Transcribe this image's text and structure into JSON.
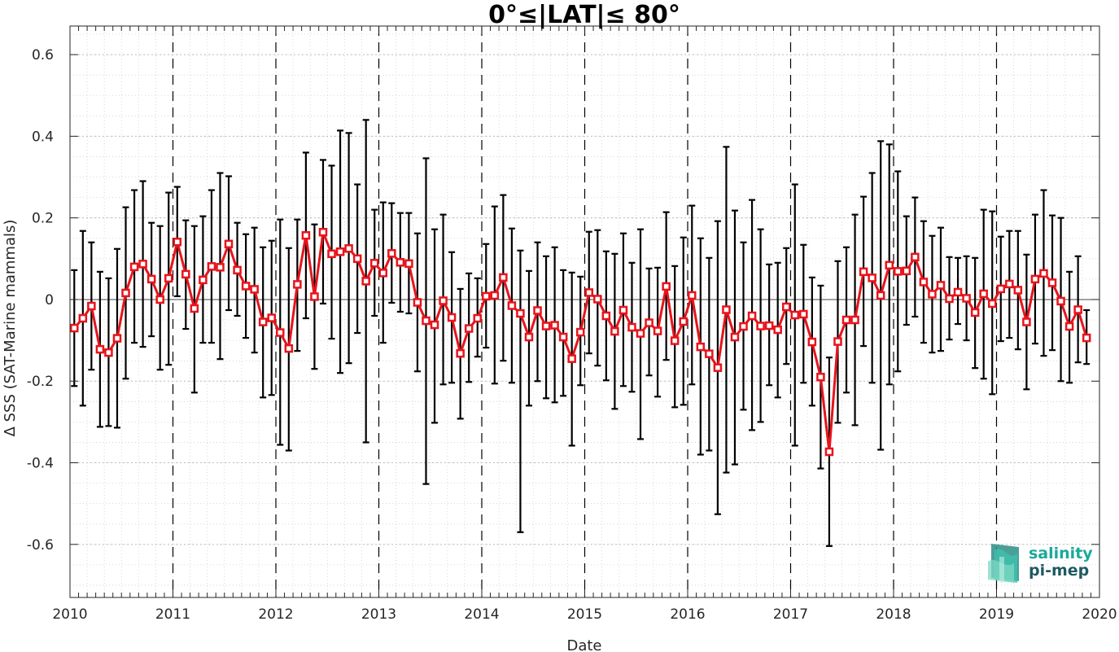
{
  "chart_data": {
    "type": "line",
    "title": "0°≤|LAT|≤ 80°",
    "xlabel": "Date",
    "ylabel": "Δ SSS (SAT-Marine mammals)",
    "xlim": [
      2010,
      2020
    ],
    "ylim": [
      -0.73,
      0.67
    ],
    "x_ticks": [
      "2010",
      "2011",
      "2012",
      "2013",
      "2014",
      "2015",
      "2016",
      "2017",
      "2018",
      "2019",
      "2020"
    ],
    "y_ticks": [
      "0.6",
      "0.4",
      "0.2",
      "0",
      "-0.2",
      "-0.4",
      "-0.6"
    ],
    "y_tick_values": [
      0.6,
      0.4,
      0.2,
      0,
      -0.2,
      -0.4,
      -0.6
    ],
    "year_dividers": [
      2011,
      2012,
      2013,
      2014,
      2015,
      2016,
      2017,
      2018,
      2019
    ],
    "grid": true,
    "zero_line": true,
    "series": [
      {
        "color": "#e8141c",
        "marker": "square",
        "error_bar_color": "#000000",
        "start": "2010-01",
        "step": "1 month",
        "values": [
          -0.07,
          -0.046,
          -0.016,
          -0.122,
          -0.13,
          -0.095,
          0.016,
          0.08,
          0.087,
          0.05,
          0.0,
          0.052,
          0.141,
          0.062,
          -0.022,
          0.048,
          0.081,
          0.079,
          0.136,
          0.072,
          0.033,
          0.025,
          -0.055,
          -0.045,
          -0.081,
          -0.12,
          0.037,
          0.157,
          0.007,
          0.165,
          0.112,
          0.117,
          0.125,
          0.1,
          0.045,
          0.089,
          0.065,
          0.113,
          0.091,
          0.088,
          -0.007,
          -0.052,
          -0.062,
          -0.003,
          -0.044,
          -0.132,
          -0.071,
          -0.046,
          0.008,
          0.01,
          0.054,
          -0.015,
          -0.034,
          -0.092,
          -0.027,
          -0.065,
          -0.063,
          -0.092,
          -0.145,
          -0.08,
          0.017,
          0.001,
          -0.04,
          -0.078,
          -0.026,
          -0.068,
          -0.083,
          -0.057,
          -0.077,
          0.032,
          -0.101,
          -0.054,
          0.01,
          -0.116,
          -0.133,
          -0.167,
          -0.025,
          -0.092,
          -0.066,
          -0.04,
          -0.065,
          -0.064,
          -0.074,
          -0.018,
          -0.038,
          -0.036,
          -0.104,
          -0.19,
          -0.373,
          -0.103,
          -0.05,
          -0.05,
          0.068,
          0.053,
          0.01,
          0.084,
          0.069,
          0.07,
          0.104,
          0.043,
          0.013,
          0.035,
          0.002,
          0.018,
          0.003,
          -0.032,
          0.014,
          -0.01,
          0.026,
          0.038,
          0.023,
          -0.055,
          0.05,
          0.064,
          0.041,
          -0.004,
          -0.066,
          -0.025,
          -0.094
        ],
        "upper": [
          0.072,
          0.168,
          0.14,
          0.068,
          0.052,
          0.124,
          0.226,
          0.268,
          0.29,
          0.188,
          0.18,
          0.262,
          0.276,
          0.194,
          0.18,
          0.204,
          0.268,
          0.31,
          0.302,
          0.188,
          0.16,
          0.176,
          0.128,
          0.144,
          0.196,
          0.126,
          0.196,
          0.36,
          0.184,
          0.342,
          0.328,
          0.414,
          0.408,
          0.282,
          0.44,
          0.22,
          0.238,
          0.236,
          0.212,
          0.212,
          0.162,
          0.346,
          0.172,
          0.208,
          0.116,
          0.026,
          0.064,
          0.052,
          0.136,
          0.228,
          0.256,
          0.174,
          0.12,
          0.07,
          0.14,
          0.106,
          0.128,
          0.072,
          0.066,
          0.056,
          0.166,
          0.17,
          0.118,
          0.112,
          0.162,
          0.09,
          0.172,
          0.076,
          0.078,
          0.214,
          0.082,
          0.152,
          0.23,
          0.15,
          0.102,
          0.192,
          0.374,
          0.218,
          0.14,
          0.244,
          0.172,
          0.086,
          0.09,
          0.126,
          0.282,
          0.134,
          0.054,
          0.034,
          -0.142,
          0.094,
          0.128,
          0.208,
          0.252,
          0.31,
          0.388,
          0.38,
          0.314,
          0.204,
          0.25,
          0.192,
          0.156,
          0.176,
          0.104,
          0.102,
          0.106,
          0.102,
          0.22,
          0.216,
          0.154,
          0.168,
          0.168,
          0.11,
          0.208,
          0.268,
          0.206,
          0.2,
          0.068,
          0.106,
          -0.026
        ],
        "lower": [
          -0.212,
          -0.26,
          -0.172,
          -0.312,
          -0.31,
          -0.314,
          -0.194,
          -0.106,
          -0.116,
          -0.09,
          -0.172,
          -0.16,
          0.008,
          -0.072,
          -0.228,
          -0.106,
          -0.106,
          -0.146,
          -0.026,
          -0.04,
          -0.094,
          -0.13,
          -0.24,
          -0.234,
          -0.356,
          -0.37,
          -0.126,
          -0.046,
          -0.17,
          -0.01,
          -0.096,
          -0.18,
          -0.156,
          -0.082,
          -0.35,
          -0.04,
          -0.106,
          -0.008,
          -0.03,
          -0.034,
          -0.176,
          -0.452,
          -0.302,
          -0.208,
          -0.204,
          -0.292,
          -0.202,
          -0.14,
          -0.118,
          -0.206,
          -0.15,
          -0.204,
          -0.57,
          -0.26,
          -0.2,
          -0.242,
          -0.252,
          -0.236,
          -0.358,
          -0.21,
          -0.132,
          -0.162,
          -0.198,
          -0.268,
          -0.212,
          -0.226,
          -0.342,
          -0.186,
          -0.238,
          -0.148,
          -0.264,
          -0.258,
          -0.208,
          -0.38,
          -0.37,
          -0.526,
          -0.424,
          -0.404,
          -0.27,
          -0.32,
          -0.3,
          -0.21,
          -0.24,
          -0.158,
          -0.358,
          -0.204,
          -0.26,
          -0.414,
          -0.604,
          -0.302,
          -0.228,
          -0.308,
          -0.114,
          -0.204,
          -0.368,
          -0.208,
          -0.176,
          -0.062,
          -0.042,
          -0.106,
          -0.13,
          -0.126,
          -0.098,
          -0.06,
          -0.1,
          -0.168,
          -0.194,
          -0.232,
          -0.102,
          -0.094,
          -0.122,
          -0.22,
          -0.108,
          -0.138,
          -0.124,
          -0.2,
          -0.204,
          -0.154,
          -0.158
        ]
      }
    ]
  },
  "logo": {
    "line1": "salinity",
    "line2": "pi-mep",
    "color_line1": "#1aa99a",
    "color_line2": "#1e5a62"
  },
  "colors": {
    "series": "#e8141c",
    "error_bars": "#000000",
    "grid": "#cfcfcf",
    "axes": "#262626"
  }
}
